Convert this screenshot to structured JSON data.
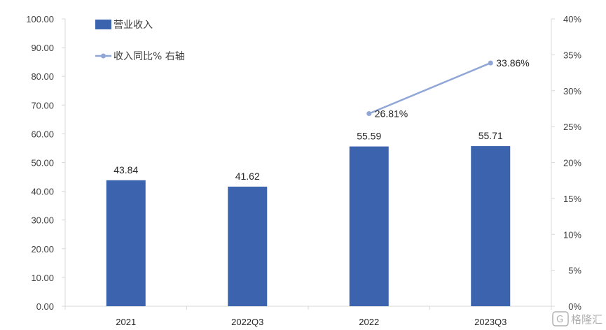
{
  "chart_data": {
    "type": "bar",
    "categories": [
      "2021",
      "2022Q3",
      "2022",
      "2023Q3"
    ],
    "series": [
      {
        "name": "营业收入",
        "type": "bar",
        "axis": "left",
        "color": "#3c64ae",
        "values": [
          43.84,
          41.62,
          55.59,
          55.71
        ],
        "labels": [
          "43.84",
          "41.62",
          "55.59",
          "55.71"
        ]
      },
      {
        "name": "收入同比% 右轴",
        "type": "line",
        "axis": "right",
        "color": "#8fa6d6",
        "values": [
          null,
          null,
          26.81,
          33.86
        ],
        "labels": [
          "",
          "",
          "26.81%",
          "33.86%"
        ]
      }
    ],
    "y_left": {
      "range": [
        0,
        100
      ],
      "ticks": [
        "0.00",
        "10.00",
        "20.00",
        "30.00",
        "40.00",
        "50.00",
        "60.00",
        "70.00",
        "80.00",
        "90.00",
        "100.00"
      ]
    },
    "y_right": {
      "range": [
        0,
        40
      ],
      "ticks": [
        "0%",
        "5%",
        "10%",
        "15%",
        "20%",
        "25%",
        "30%",
        "35%",
        "40%"
      ]
    },
    "grid": false,
    "legend": "top-left"
  },
  "watermark": {
    "text": "格隆汇",
    "glyph": "G"
  }
}
